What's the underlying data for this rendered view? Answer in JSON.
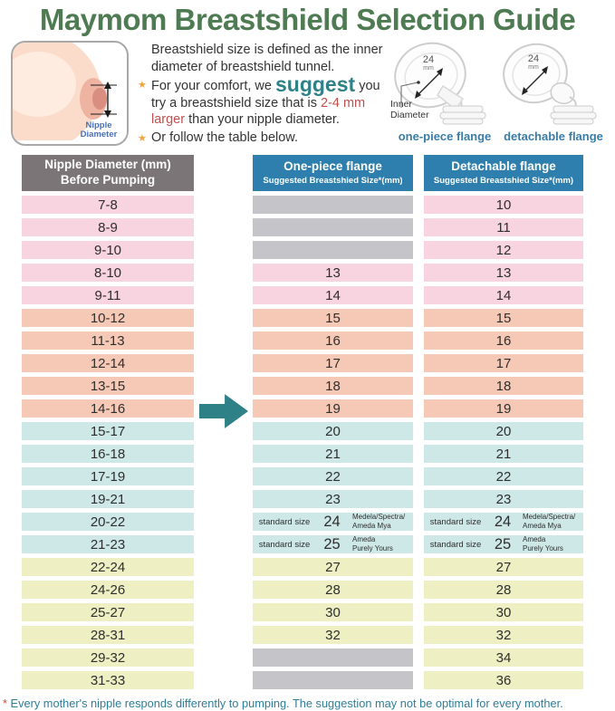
{
  "title": "Maymom Breastshield Selection Guide",
  "info": {
    "definition": "Breastshield size is defined as the inner diameter of breastshield tunnel.",
    "star": "★",
    "bullet1": {
      "pre": "For your comfort, we ",
      "highlight": "suggest",
      "mid": " you try a breastshield size that is ",
      "emphasis": "2-4 mm larger",
      "post": " than your nipple diameter."
    },
    "bullet2": "Or follow the table below.",
    "diagram": {
      "label_line1": "Nipple",
      "label_line2": "Diameter"
    },
    "flanges": [
      {
        "size": "24",
        "unit": "mm",
        "annotation_line1": "Inner",
        "annotation_line2": "Diameter",
        "label": "one-piece flange"
      },
      {
        "size": "24",
        "unit": "mm",
        "label": "detachable flange"
      }
    ]
  },
  "table": {
    "headers": [
      {
        "line1": "Nipple Diameter (mm)",
        "line2": "Before Pumping"
      },
      {
        "line1": "One-piece flange",
        "line2": "Suggested Breastshied Size*(mm)"
      },
      {
        "line1": "Detachable flange",
        "line2": "Suggested Breastshied Size*(mm)"
      }
    ],
    "rows": [
      {
        "range": "7-8",
        "one": "",
        "one_gray": true,
        "detach": "10",
        "group": "pink"
      },
      {
        "range": "8-9",
        "one": "",
        "one_gray": true,
        "detach": "11",
        "group": "pink"
      },
      {
        "range": "9-10",
        "one": "",
        "one_gray": true,
        "detach": "12",
        "group": "pink"
      },
      {
        "range": "8-10",
        "one": "13",
        "detach": "13",
        "group": "pink"
      },
      {
        "range": "9-11",
        "one": "14",
        "detach": "14",
        "group": "pink"
      },
      {
        "range": "10-12",
        "one": "15",
        "detach": "15",
        "group": "peach"
      },
      {
        "range": "11-13",
        "one": "16",
        "detach": "16",
        "group": "peach"
      },
      {
        "range": "12-14",
        "one": "17",
        "detach": "17",
        "group": "peach"
      },
      {
        "range": "13-15",
        "one": "18",
        "detach": "18",
        "group": "peach"
      },
      {
        "range": "14-16",
        "one": "19",
        "detach": "19",
        "group": "peach"
      },
      {
        "range": "15-17",
        "one": "20",
        "detach": "20",
        "group": "teal"
      },
      {
        "range": "16-18",
        "one": "21",
        "detach": "21",
        "group": "teal"
      },
      {
        "range": "17-19",
        "one": "22",
        "detach": "22",
        "group": "teal"
      },
      {
        "range": "19-21",
        "one": "23",
        "detach": "23",
        "group": "teal"
      },
      {
        "range": "20-22",
        "one": "24",
        "detach": "24",
        "group": "teal",
        "tag": "standard size",
        "brand": [
          "Medela/Spectra/",
          "Ameda Mya"
        ]
      },
      {
        "range": "21-23",
        "one": "25",
        "detach": "25",
        "group": "teal",
        "tag": "standard size",
        "brand": [
          "Ameda",
          "Purely Yours"
        ]
      },
      {
        "range": "22-24",
        "one": "27",
        "detach": "27",
        "group": "yellow"
      },
      {
        "range": "24-26",
        "one": "28",
        "detach": "28",
        "group": "yellow"
      },
      {
        "range": "25-27",
        "one": "30",
        "detach": "30",
        "group": "yellow"
      },
      {
        "range": "28-31",
        "one": "32",
        "detach": "32",
        "group": "yellow"
      },
      {
        "range": "29-32",
        "one": "",
        "one_gray": true,
        "detach": "34",
        "group": "yellow"
      },
      {
        "range": "31-33",
        "one": "",
        "one_gray": true,
        "detach": "36",
        "group": "yellow"
      }
    ]
  },
  "footnote": {
    "asterisk": "*",
    "text": " Every mother's nipple responds differently to pumping. The suggestion may not be optimal for every mother."
  },
  "colors": {
    "title_green": "#4e7b52",
    "header_gray": "#7b7577",
    "header_blue": "#2e7fae",
    "row_pink": "#f8d4e0",
    "row_peach": "#f6c9b6",
    "row_teal": "#cee8e8",
    "row_yellow": "#eeefc2",
    "cell_gray": "#c5c4c8",
    "accent_teal": "#2e8187",
    "accent_red": "#c0504d",
    "star_orange": "#f2a33c",
    "label_blue": "#3a7ca6",
    "footnote_teal": "#2f7d99",
    "diagram_label_blue": "#4a6fb5",
    "skin_light": "#fbdcca",
    "skin_mid": "#efb3a1",
    "skin_dark": "#d98e80"
  }
}
